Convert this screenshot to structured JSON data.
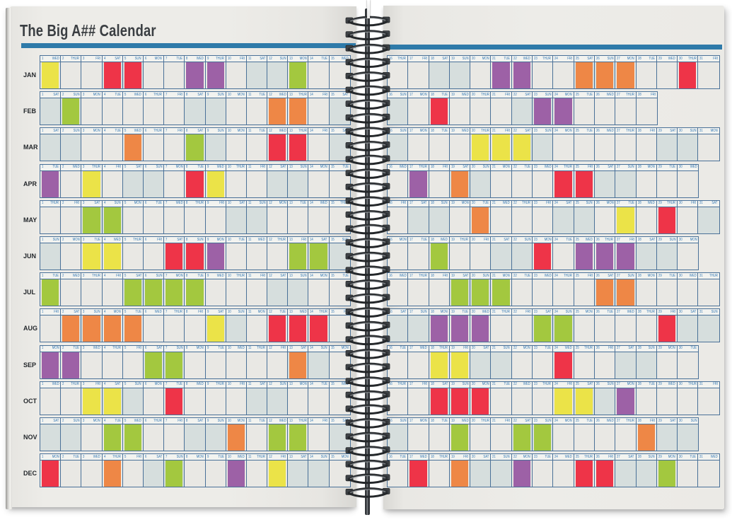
{
  "title": "The Big A## Calendar",
  "weekday_labels": [
    "MON",
    "TUE",
    "WED",
    "THUR",
    "FRI",
    "SAT",
    "SUN"
  ],
  "colors": {
    "red": "#ee3448",
    "purple": "#9d61a6",
    "green": "#a3c83f",
    "orange": "#ee8746",
    "yellow": "#ebe348",
    "weekend_shade": "#d6dedd",
    "accent_bar": "#2e7aa9",
    "grid_line": "#4a7198",
    "day_text": "#3579b5",
    "month_text": "#24282c",
    "cell_bg": "#e9e8e4",
    "header_bg": "#f2f3f0",
    "title_text": "#3a3e42"
  },
  "months": [
    {
      "label": "JAN",
      "days": 31,
      "start": "WED",
      "events": {
        "1": "yellow",
        "4": "red",
        "5": "red",
        "8": "purple",
        "9": "purple",
        "13": "green",
        "21": "purple",
        "22": "purple",
        "25": "orange",
        "26": "orange",
        "27": "orange",
        "30": "red"
      }
    },
    {
      "label": "FEB",
      "days": 28,
      "start": "SAT",
      "events": {
        "2": "green",
        "12": "orange",
        "13": "orange",
        "18": "red",
        "23": "purple",
        "24": "purple"
      }
    },
    {
      "label": "MAR",
      "days": 31,
      "start": "SAT",
      "events": {
        "5": "orange",
        "8": "green",
        "12": "red",
        "13": "red",
        "20": "yellow",
        "21": "yellow",
        "22": "yellow"
      }
    },
    {
      "label": "APR",
      "days": 30,
      "start": "TUE",
      "events": {
        "1": "purple",
        "3": "yellow",
        "8": "red",
        "9": "yellow",
        "17": "purple",
        "19": "orange",
        "24": "red",
        "25": "red"
      }
    },
    {
      "label": "MAY",
      "days": 31,
      "start": "THUR",
      "events": {
        "3": "green",
        "4": "green",
        "20": "orange",
        "27": "yellow",
        "29": "red"
      }
    },
    {
      "label": "JUN",
      "days": 30,
      "start": "SUN",
      "events": {
        "3": "yellow",
        "4": "yellow",
        "7": "red",
        "8": "red",
        "9": "purple",
        "13": "green",
        "14": "green",
        "18": "green",
        "23": "red",
        "25": "purple",
        "26": "purple",
        "27": "purple"
      }
    },
    {
      "label": "JUL",
      "days": 31,
      "start": "TUE",
      "events": {
        "1": "green",
        "5": "green",
        "6": "green",
        "7": "green",
        "8": "green",
        "19": "green",
        "20": "green",
        "21": "green",
        "26": "orange",
        "27": "orange"
      }
    },
    {
      "label": "AUG",
      "days": 31,
      "start": "FRI",
      "events": {
        "2": "orange",
        "3": "orange",
        "4": "orange",
        "5": "orange",
        "9": "yellow",
        "12": "red",
        "13": "red",
        "14": "red",
        "18": "purple",
        "19": "purple",
        "20": "purple",
        "23": "green",
        "24": "green",
        "29": "red"
      }
    },
    {
      "label": "SEP",
      "days": 30,
      "start": "MON",
      "events": {
        "1": "purple",
        "2": "purple",
        "6": "green",
        "7": "green",
        "13": "orange",
        "18": "yellow",
        "19": "yellow",
        "24": "red"
      }
    },
    {
      "label": "OCT",
      "days": 31,
      "start": "WED",
      "events": {
        "3": "yellow",
        "4": "yellow",
        "7": "red",
        "18": "red",
        "19": "red",
        "20": "red",
        "24": "yellow",
        "25": "yellow",
        "27": "purple"
      }
    },
    {
      "label": "NOV",
      "days": 30,
      "start": "SAT",
      "events": {
        "4": "green",
        "5": "green",
        "10": "orange",
        "12": "green",
        "13": "green",
        "19": "green",
        "22": "green",
        "23": "green",
        "28": "orange"
      }
    },
    {
      "label": "DEC",
      "days": 31,
      "start": "MON",
      "events": {
        "1": "red",
        "4": "orange",
        "7": "green",
        "10": "purple",
        "12": "yellow",
        "17": "red",
        "19": "orange",
        "22": "purple",
        "25": "red",
        "26": "red",
        "29": "green"
      }
    }
  ]
}
